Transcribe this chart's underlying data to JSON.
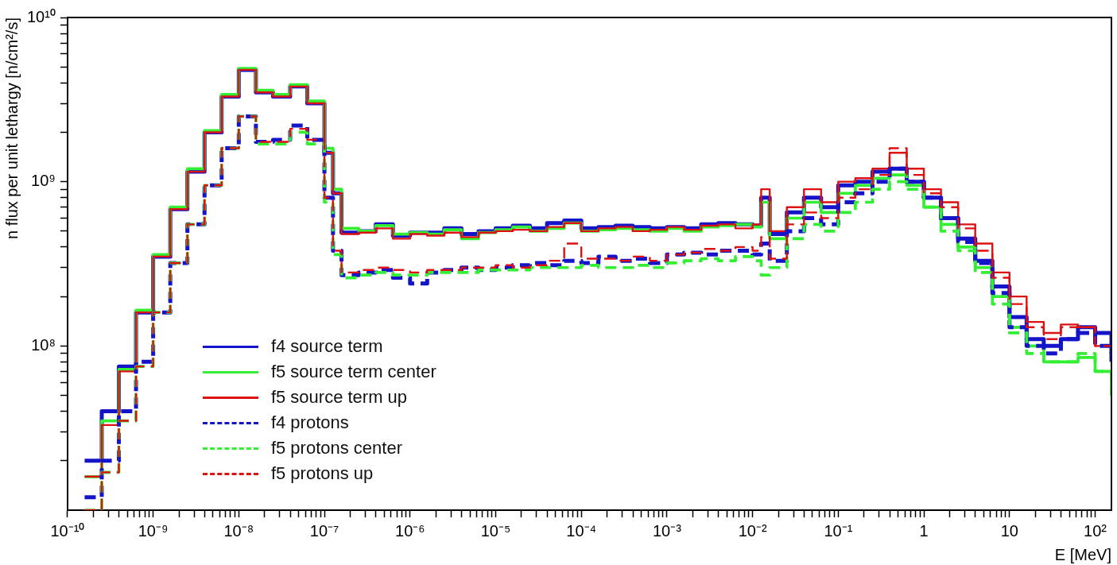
{
  "chart_data": {
    "type": "step",
    "log": "xy",
    "xlabel": "E [MeV]",
    "ylabel": "n flux per unit lethargy [n/cm²/s]",
    "legend": "bottom left",
    "grid": false,
    "xlim": [
      1e-10,
      155
    ],
    "ylim": [
      10000000.0,
      10000000000.0
    ],
    "xticks": [
      {
        "value": 1e-10,
        "label": "10⁻¹⁰"
      },
      {
        "value": 2e-10,
        "label": null
      },
      {
        "value": 3e-10,
        "label": null
      },
      {
        "value": 4e-10,
        "label": null
      },
      {
        "value": 5e-10,
        "label": null
      },
      {
        "value": 6e-10,
        "label": null
      },
      {
        "value": 7e-10,
        "label": null
      },
      {
        "value": 8e-10,
        "label": null
      },
      {
        "value": 9e-10,
        "label": null
      },
      {
        "value": 1e-09,
        "label": "10⁻⁹"
      },
      {
        "value": 2e-09,
        "label": null
      },
      {
        "value": 3e-09,
        "label": null
      },
      {
        "value": 4e-09,
        "label": null
      },
      {
        "value": 5e-09,
        "label": null
      },
      {
        "value": 6e-09,
        "label": null
      },
      {
        "value": 7e-09,
        "label": null
      },
      {
        "value": 8e-09,
        "label": null
      },
      {
        "value": 9e-09,
        "label": null
      },
      {
        "value": 1e-08,
        "label": "10⁻⁸"
      },
      {
        "value": 2e-08,
        "label": null
      },
      {
        "value": 3e-08,
        "label": null
      },
      {
        "value": 4e-08,
        "label": null
      },
      {
        "value": 5e-08,
        "label": null
      },
      {
        "value": 6e-08,
        "label": null
      },
      {
        "value": 7e-08,
        "label": null
      },
      {
        "value": 8e-08,
        "label": null
      },
      {
        "value": 9e-08,
        "label": null
      },
      {
        "value": 1e-07,
        "label": "10⁻⁷"
      },
      {
        "value": 2e-07,
        "label": null
      },
      {
        "value": 3e-07,
        "label": null
      },
      {
        "value": 4e-07,
        "label": null
      },
      {
        "value": 5e-07,
        "label": null
      },
      {
        "value": 6e-07,
        "label": null
      },
      {
        "value": 7e-07,
        "label": null
      },
      {
        "value": 8e-07,
        "label": null
      },
      {
        "value": 9e-07,
        "label": null
      },
      {
        "value": 1e-06,
        "label": "10⁻⁶"
      },
      {
        "value": 2e-06,
        "label": null
      },
      {
        "value": 3e-06,
        "label": null
      },
      {
        "value": 4e-06,
        "label": null
      },
      {
        "value": 5e-06,
        "label": null
      },
      {
        "value": 6e-06,
        "label": null
      },
      {
        "value": 7e-06,
        "label": null
      },
      {
        "value": 8e-06,
        "label": null
      },
      {
        "value": 9e-06,
        "label": null
      },
      {
        "value": 1e-05,
        "label": "10⁻⁵"
      },
      {
        "value": 2e-05,
        "label": null
      },
      {
        "value": 3e-05,
        "label": null
      },
      {
        "value": 4e-05,
        "label": null
      },
      {
        "value": 5e-05,
        "label": null
      },
      {
        "value": 6e-05,
        "label": null
      },
      {
        "value": 7e-05,
        "label": null
      },
      {
        "value": 8e-05,
        "label": null
      },
      {
        "value": 9e-05,
        "label": null
      },
      {
        "value": 0.0001,
        "label": "10⁻⁴"
      },
      {
        "value": 0.0002,
        "label": null
      },
      {
        "value": 0.0003,
        "label": null
      },
      {
        "value": 0.0004,
        "label": null
      },
      {
        "value": 0.0005,
        "label": null
      },
      {
        "value": 0.0006,
        "label": null
      },
      {
        "value": 0.0007,
        "label": null
      },
      {
        "value": 0.0008,
        "label": null
      },
      {
        "value": 0.0009,
        "label": null
      },
      {
        "value": 0.001,
        "label": "10⁻³"
      },
      {
        "value": 0.002,
        "label": null
      },
      {
        "value": 0.003,
        "label": null
      },
      {
        "value": 0.004,
        "label": null
      },
      {
        "value": 0.005,
        "label": null
      },
      {
        "value": 0.006,
        "label": null
      },
      {
        "value": 0.007,
        "label": null
      },
      {
        "value": 0.008,
        "label": null
      },
      {
        "value": 0.009,
        "label": null
      },
      {
        "value": 0.01,
        "label": "10⁻²"
      },
      {
        "value": 0.02,
        "label": null
      },
      {
        "value": 0.03,
        "label": null
      },
      {
        "value": 0.04,
        "label": null
      },
      {
        "value": 0.05,
        "label": null
      },
      {
        "value": 0.06,
        "label": null
      },
      {
        "value": 0.07,
        "label": null
      },
      {
        "value": 0.08,
        "label": null
      },
      {
        "value": 0.09,
        "label": null
      },
      {
        "value": 0.1,
        "label": "10⁻¹"
      },
      {
        "value": 0.2,
        "label": null
      },
      {
        "value": 0.3,
        "label": null
      },
      {
        "value": 0.4,
        "label": null
      },
      {
        "value": 0.5,
        "label": null
      },
      {
        "value": 0.6,
        "label": null
      },
      {
        "value": 0.7,
        "label": null
      },
      {
        "value": 0.8,
        "label": null
      },
      {
        "value": 0.9,
        "label": null
      },
      1,
      {
        "value": 2,
        "label": null
      },
      {
        "value": 3,
        "label": null
      },
      {
        "value": 4,
        "label": null
      },
      {
        "value": 5,
        "label": null
      },
      {
        "value": 6,
        "label": null
      },
      {
        "value": 7,
        "label": null
      },
      {
        "value": 8,
        "label": null
      },
      {
        "value": 9,
        "label": null
      },
      10,
      {
        "value": 20,
        "label": null
      },
      {
        "value": 30,
        "label": null
      },
      {
        "value": 40,
        "label": null
      },
      {
        "value": 50,
        "label": null
      },
      {
        "value": 60,
        "label": null
      },
      {
        "value": 70,
        "label": null
      },
      {
        "value": 80,
        "label": null
      },
      {
        "value": 90,
        "label": null
      },
      {
        "value": 100,
        "label": "10²"
      }
    ],
    "yticks": [
      {
        "value": 20000000.0,
        "label": null
      },
      {
        "value": 30000000.0,
        "label": null
      },
      {
        "value": 40000000.0,
        "label": null
      },
      {
        "value": 50000000.0,
        "label": null
      },
      {
        "value": 60000000.0,
        "label": null
      },
      {
        "value": 70000000.0,
        "label": null
      },
      {
        "value": 80000000.0,
        "label": null
      },
      {
        "value": 90000000.0,
        "label": null
      },
      {
        "value": 100000000.0,
        "label": "10⁸"
      },
      {
        "value": 200000000.0,
        "label": null
      },
      {
        "value": 300000000.0,
        "label": null
      },
      {
        "value": 400000000.0,
        "label": null
      },
      {
        "value": 500000000.0,
        "label": null
      },
      {
        "value": 600000000.0,
        "label": null
      },
      {
        "value": 700000000.0,
        "label": null
      },
      {
        "value": 800000000.0,
        "label": null
      },
      {
        "value": 900000000.0,
        "label": null
      },
      {
        "value": 1000000000.0,
        "label": "10⁹"
      },
      {
        "value": 2000000000.0,
        "label": null
      },
      {
        "value": 3000000000.0,
        "label": null
      },
      {
        "value": 4000000000.0,
        "label": null
      },
      {
        "value": 5000000000.0,
        "label": null
      },
      {
        "value": 6000000000.0,
        "label": null
      },
      {
        "value": 7000000000.0,
        "label": null
      },
      {
        "value": 8000000000.0,
        "label": null
      },
      {
        "value": 9000000000.0,
        "label": null
      },
      {
        "value": 10000000000.0,
        "label": "10¹⁰"
      }
    ],
    "x": [
      1.585e-10,
      2.512e-10,
      3.981e-10,
      6.31e-10,
      1e-09,
      1.585e-09,
      2.512e-09,
      3.981e-09,
      6.31e-09,
      1e-08,
      1.585e-08,
      2.512e-08,
      3.981e-08,
      6.31e-08,
      1e-07,
      1.259e-07,
      1.585e-07,
      2.512e-07,
      3.981e-07,
      6.31e-07,
      1e-06,
      1.585e-06,
      2.512e-06,
      3.981e-06,
      6.31e-06,
      1e-05,
      1.585e-05,
      2.512e-05,
      3.981e-05,
      6.31e-05,
      0.0001,
      0.0001585,
      0.0002512,
      0.0003981,
      0.000631,
      0.001,
      0.001585,
      0.002512,
      0.003981,
      0.00631,
      0.01,
      0.01259,
      0.01585,
      0.02512,
      0.03981,
      0.0631,
      0.1,
      0.1585,
      0.2512,
      0.3981,
      0.631,
      1,
      1.585,
      2.512,
      3.981,
      6.31,
      10,
      15.85,
      25.12,
      39.81,
      63.1,
      100,
      155
    ],
    "series": [
      {
        "name": "f4 source term",
        "color": "#1414c8",
        "line_style": "solid",
        "values": [
          20000000.0,
          40000000.0,
          75000000.0,
          160000000.0,
          350000000.0,
          680000000.0,
          1150000000.0,
          2000000000.0,
          3300000000.0,
          4800000000.0,
          3500000000.0,
          3300000000.0,
          3800000000.0,
          3000000000.0,
          1500000000.0,
          850000000.0,
          490000000.0,
          500000000.0,
          550000000.0,
          470000000.0,
          490000000.0,
          490000000.0,
          520000000.0,
          480000000.0,
          500000000.0,
          520000000.0,
          540000000.0,
          520000000.0,
          560000000.0,
          580000000.0,
          520000000.0,
          530000000.0,
          540000000.0,
          530000000.0,
          520000000.0,
          530000000.0,
          520000000.0,
          550000000.0,
          560000000.0,
          550000000.0,
          540000000.0,
          800000000.0,
          480000000.0,
          650000000.0,
          800000000.0,
          700000000.0,
          950000000.0,
          1000000000.0,
          1150000000.0,
          1200000000.0,
          1000000000.0,
          800000000.0,
          600000000.0,
          450000000.0,
          330000000.0,
          230000000.0,
          150000000.0,
          110000000.0,
          100000000.0,
          110000000.0,
          130000000.0,
          120000000.0,
          90000000.0
        ]
      },
      {
        "name": "f5 source term center",
        "color": "#33ee33",
        "line_style": "solid",
        "values": [
          16000000.0,
          35000000.0,
          72000000.0,
          165000000.0,
          360000000.0,
          700000000.0,
          1200000000.0,
          2050000000.0,
          3400000000.0,
          4900000000.0,
          3600000000.0,
          3400000000.0,
          3900000000.0,
          3100000000.0,
          1600000000.0,
          900000000.0,
          520000000.0,
          500000000.0,
          540000000.0,
          480000000.0,
          490000000.0,
          480000000.0,
          510000000.0,
          450000000.0,
          490000000.0,
          510000000.0,
          530000000.0,
          500000000.0,
          520000000.0,
          560000000.0,
          500000000.0,
          510000000.0,
          520000000.0,
          510000000.0,
          500000000.0,
          520000000.0,
          500000000.0,
          530000000.0,
          540000000.0,
          550000000.0,
          530000000.0,
          750000000.0,
          450000000.0,
          600000000.0,
          750000000.0,
          650000000.0,
          850000000.0,
          950000000.0,
          1050000000.0,
          1100000000.0,
          950000000.0,
          700000000.0,
          550000000.0,
          400000000.0,
          300000000.0,
          200000000.0,
          130000000.0,
          100000000.0,
          80000000.0,
          80000000.0,
          85000000.0,
          70000000.0,
          50000000.0
        ]
      },
      {
        "name": "f5 source term up",
        "color": "#dd1111",
        "line_style": "solid",
        "values": [
          16000000.0,
          33000000.0,
          70000000.0,
          160000000.0,
          350000000.0,
          680000000.0,
          1150000000.0,
          2000000000.0,
          3300000000.0,
          4800000000.0,
          3500000000.0,
          3300000000.0,
          3800000000.0,
          3000000000.0,
          1500000000.0,
          850000000.0,
          480000000.0,
          490000000.0,
          520000000.0,
          450000000.0,
          480000000.0,
          470000000.0,
          490000000.0,
          460000000.0,
          490000000.0,
          500000000.0,
          510000000.0,
          500000000.0,
          530000000.0,
          560000000.0,
          500000000.0,
          520000000.0,
          530000000.0,
          500000000.0,
          510000000.0,
          530000000.0,
          510000000.0,
          540000000.0,
          550000000.0,
          520000000.0,
          550000000.0,
          900000000.0,
          500000000.0,
          700000000.0,
          900000000.0,
          750000000.0,
          1000000000.0,
          1050000000.0,
          1200000000.0,
          1500000000.0,
          1200000000.0,
          900000000.0,
          750000000.0,
          550000000.0,
          420000000.0,
          280000000.0,
          200000000.0,
          140000000.0,
          120000000.0,
          135000000.0,
          130000000.0,
          100000000.0,
          100000000.0
        ]
      },
      {
        "name": "f4 protons",
        "color": "#1414c8",
        "line_style": "dashed",
        "values": [
          12000000.0,
          20000000.0,
          40000000.0,
          80000000.0,
          160000000.0,
          320000000.0,
          550000000.0,
          950000000.0,
          1600000000.0,
          2500000000.0,
          1750000000.0,
          1800000000.0,
          2200000000.0,
          1800000000.0,
          800000000.0,
          380000000.0,
          270000000.0,
          280000000.0,
          290000000.0,
          260000000.0,
          240000000.0,
          280000000.0,
          290000000.0,
          300000000.0,
          290000000.0,
          300000000.0,
          310000000.0,
          320000000.0,
          310000000.0,
          330000000.0,
          320000000.0,
          350000000.0,
          330000000.0,
          340000000.0,
          320000000.0,
          360000000.0,
          370000000.0,
          360000000.0,
          380000000.0,
          380000000.0,
          360000000.0,
          420000000.0,
          330000000.0,
          500000000.0,
          600000000.0,
          550000000.0,
          750000000.0,
          850000000.0,
          1000000000.0,
          1200000000.0,
          1000000000.0,
          800000000.0,
          600000000.0,
          430000000.0,
          320000000.0,
          210000000.0,
          130000000.0,
          100000000.0,
          90000000.0,
          110000000.0,
          120000000.0,
          100000000.0,
          80000000.0
        ]
      },
      {
        "name": "f5 protons center",
        "color": "#33ee33",
        "line_style": "dashed",
        "values": [
          10000000.0,
          17000000.0,
          35000000.0,
          75000000.0,
          160000000.0,
          320000000.0,
          550000000.0,
          950000000.0,
          1600000000.0,
          2500000000.0,
          1700000000.0,
          1700000000.0,
          2000000000.0,
          1700000000.0,
          750000000.0,
          360000000.0,
          260000000.0,
          270000000.0,
          280000000.0,
          270000000.0,
          270000000.0,
          280000000.0,
          280000000.0,
          280000000.0,
          290000000.0,
          290000000.0,
          290000000.0,
          300000000.0,
          300000000.0,
          300000000.0,
          310000000.0,
          300000000.0,
          300000000.0,
          310000000.0,
          300000000.0,
          320000000.0,
          330000000.0,
          340000000.0,
          330000000.0,
          350000000.0,
          330000000.0,
          270000000.0,
          300000000.0,
          450000000.0,
          550000000.0,
          500000000.0,
          650000000.0,
          750000000.0,
          900000000.0,
          1000000000.0,
          900000000.0,
          700000000.0,
          500000000.0,
          380000000.0,
          280000000.0,
          180000000.0,
          120000000.0,
          90000000.0,
          80000000.0,
          80000000.0,
          90000000.0,
          70000000.0,
          50000000.0
        ]
      },
      {
        "name": "f5 protons up",
        "color": "#dd1111",
        "line_style": "dashed",
        "values": [
          10000000.0,
          17000000.0,
          35000000.0,
          75000000.0,
          160000000.0,
          320000000.0,
          550000000.0,
          950000000.0,
          1600000000.0,
          2500000000.0,
          1750000000.0,
          1750000000.0,
          2100000000.0,
          1800000000.0,
          800000000.0,
          380000000.0,
          280000000.0,
          290000000.0,
          300000000.0,
          290000000.0,
          280000000.0,
          290000000.0,
          290000000.0,
          300000000.0,
          300000000.0,
          310000000.0,
          300000000.0,
          310000000.0,
          330000000.0,
          420000000.0,
          340000000.0,
          340000000.0,
          330000000.0,
          350000000.0,
          330000000.0,
          360000000.0,
          370000000.0,
          390000000.0,
          380000000.0,
          400000000.0,
          380000000.0,
          460000000.0,
          340000000.0,
          550000000.0,
          650000000.0,
          600000000.0,
          800000000.0,
          900000000.0,
          1100000000.0,
          1600000000.0,
          1100000000.0,
          850000000.0,
          700000000.0,
          520000000.0,
          380000000.0,
          260000000.0,
          180000000.0,
          130000000.0,
          110000000.0,
          130000000.0,
          130000000.0,
          100000000.0,
          90000000.0
        ]
      }
    ]
  }
}
